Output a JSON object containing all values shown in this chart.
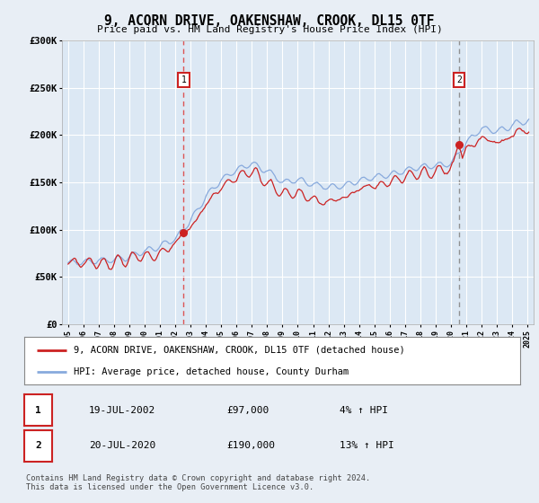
{
  "title": "9, ACORN DRIVE, OAKENSHAW, CROOK, DL15 0TF",
  "subtitle": "Price paid vs. HM Land Registry's House Price Index (HPI)",
  "background_color": "#e8eef5",
  "plot_bg_color": "#dce8f4",
  "sale1_date": 2002.54,
  "sale1_price": 97000,
  "sale2_date": 2020.54,
  "sale2_price": 190000,
  "legend_line1": "9, ACORN DRIVE, OAKENSHAW, CROOK, DL15 0TF (detached house)",
  "legend_line2": "HPI: Average price, detached house, County Durham",
  "footer": "Contains HM Land Registry data © Crown copyright and database right 2024.\nThis data is licensed under the Open Government Licence v3.0.",
  "ylim": [
    0,
    300000
  ],
  "xlim_start": 1994.6,
  "xlim_end": 2025.4,
  "red_color": "#cc2222",
  "blue_color": "#88aadd",
  "vline1_color": "#dd4444",
  "vline2_color": "#888888",
  "box_edge_color": "#cc2222"
}
